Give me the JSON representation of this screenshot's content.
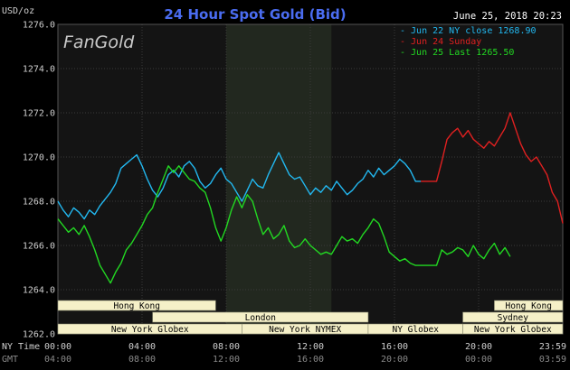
{
  "header": {
    "title": "24 Hour Spot Gold (Bid)",
    "unit_label": "USD/oz",
    "timestamp": "June 25, 2018 20:23",
    "brand": "FanGold"
  },
  "axis_labels": {
    "ny_time": "NY Time",
    "gmt": "GMT"
  },
  "legend": [
    {
      "text": "- Jun 22 NY close 1268.90",
      "color": "#22b8f0"
    },
    {
      "text": "- Jun 24 Sunday",
      "color": "#e02020"
    },
    {
      "text": "- Jun 25 Last 1265.50",
      "color": "#22d822"
    }
  ],
  "colors": {
    "background": "#000000",
    "plot_bg": "#141414",
    "grid": "#3a3a3a",
    "shade": "#22281f",
    "title": "#4a6cf0",
    "axis_text": "#cfcfcf",
    "gmt_text": "#8a8a8a",
    "session_fill": "#f5f0c8",
    "session_text": "#000000"
  },
  "sessions": [
    {
      "label": "Hong Kong",
      "row": 1,
      "start_h": 0,
      "end_h": 7.5
    },
    {
      "label": "London",
      "row": 2,
      "start_h": 4.5,
      "end_h": 14.75
    },
    {
      "label": "New York Globex",
      "row": 3,
      "start_h": 0,
      "end_h": 8.75
    },
    {
      "label": "New York NYMEX",
      "row": 3,
      "start_h": 8.75,
      "end_h": 14.75
    },
    {
      "label": "NY Globex",
      "row": 3,
      "start_h": 14.75,
      "end_h": 19.25
    },
    {
      "label": "Hong Kong",
      "row": 1,
      "start_h": 20.75,
      "end_h": 24
    },
    {
      "label": "Sydney",
      "row": 2,
      "start_h": 19.25,
      "end_h": 24
    },
    {
      "label": "New York Globex",
      "row": 3,
      "start_h": 19.25,
      "end_h": 24
    }
  ],
  "chart_data": {
    "type": "line",
    "title": "24 Hour Spot Gold (Bid)",
    "ylabel": "USD/oz",
    "ylim": [
      1262.0,
      1276.0
    ],
    "yticks": [
      "1276.0",
      "1274.0",
      "1272.0",
      "1270.0",
      "1268.0",
      "1266.0",
      "1264.0",
      "1262.0"
    ],
    "xlim_hours": [
      0,
      24
    ],
    "xticks": [
      {
        "h": 0,
        "ny": "00:00",
        "gmt": "04:00"
      },
      {
        "h": 4,
        "ny": "04:00",
        "gmt": "08:00"
      },
      {
        "h": 8,
        "ny": "08:00",
        "gmt": "12:00"
      },
      {
        "h": 12,
        "ny": "12:00",
        "gmt": "16:00"
      },
      {
        "h": 16,
        "ny": "16:00",
        "gmt": "20:00"
      },
      {
        "h": 20,
        "ny": "20:00",
        "gmt": "00:00"
      },
      {
        "h": 24,
        "ny": "23:59",
        "gmt": "03:59"
      }
    ],
    "shaded_period_hours": [
      8.0,
      13.0
    ],
    "grid": true,
    "series": [
      {
        "name": "Jun 22 NY close 1268.90",
        "color": "#22b8f0",
        "points": [
          [
            0.0,
            1268.0
          ],
          [
            0.25,
            1267.6
          ],
          [
            0.5,
            1267.3
          ],
          [
            0.75,
            1267.7
          ],
          [
            1.0,
            1267.5
          ],
          [
            1.25,
            1267.2
          ],
          [
            1.5,
            1267.6
          ],
          [
            1.75,
            1267.4
          ],
          [
            2.0,
            1267.8
          ],
          [
            2.25,
            1268.1
          ],
          [
            2.5,
            1268.4
          ],
          [
            2.75,
            1268.8
          ],
          [
            3.0,
            1269.5
          ],
          [
            3.25,
            1269.7
          ],
          [
            3.5,
            1269.9
          ],
          [
            3.75,
            1270.1
          ],
          [
            4.0,
            1269.6
          ],
          [
            4.25,
            1269.0
          ],
          [
            4.5,
            1268.5
          ],
          [
            4.75,
            1268.2
          ],
          [
            5.0,
            1268.6
          ],
          [
            5.25,
            1269.2
          ],
          [
            5.5,
            1269.4
          ],
          [
            5.75,
            1269.1
          ],
          [
            6.0,
            1269.6
          ],
          [
            6.25,
            1269.8
          ],
          [
            6.5,
            1269.5
          ],
          [
            6.75,
            1268.9
          ],
          [
            7.0,
            1268.6
          ],
          [
            7.25,
            1268.8
          ],
          [
            7.5,
            1269.2
          ],
          [
            7.75,
            1269.5
          ],
          [
            8.0,
            1269.0
          ],
          [
            8.25,
            1268.8
          ],
          [
            8.5,
            1268.4
          ],
          [
            8.75,
            1268.0
          ],
          [
            9.0,
            1268.5
          ],
          [
            9.25,
            1269.0
          ],
          [
            9.5,
            1268.7
          ],
          [
            9.75,
            1268.6
          ],
          [
            10.0,
            1269.2
          ],
          [
            10.25,
            1269.7
          ],
          [
            10.5,
            1270.2
          ],
          [
            10.75,
            1269.7
          ],
          [
            11.0,
            1269.2
          ],
          [
            11.25,
            1269.0
          ],
          [
            11.5,
            1269.1
          ],
          [
            11.75,
            1268.7
          ],
          [
            12.0,
            1268.3
          ],
          [
            12.25,
            1268.6
          ],
          [
            12.5,
            1268.4
          ],
          [
            12.75,
            1268.7
          ],
          [
            13.0,
            1268.5
          ],
          [
            13.25,
            1268.9
          ],
          [
            13.5,
            1268.6
          ],
          [
            13.75,
            1268.3
          ],
          [
            14.0,
            1268.5
          ],
          [
            14.25,
            1268.8
          ],
          [
            14.5,
            1269.0
          ],
          [
            14.75,
            1269.4
          ],
          [
            15.0,
            1269.1
          ],
          [
            15.25,
            1269.5
          ],
          [
            15.5,
            1269.2
          ],
          [
            15.75,
            1269.4
          ],
          [
            16.0,
            1269.6
          ],
          [
            16.25,
            1269.9
          ],
          [
            16.5,
            1269.7
          ],
          [
            16.75,
            1269.4
          ],
          [
            17.0,
            1268.9
          ],
          [
            17.25,
            1268.9
          ]
        ]
      },
      {
        "name": "Jun 24 Sunday",
        "color": "#e02020",
        "points": [
          [
            17.25,
            1268.9
          ],
          [
            18.0,
            1268.9
          ],
          [
            18.25,
            1269.8
          ],
          [
            18.5,
            1270.8
          ],
          [
            18.75,
            1271.1
          ],
          [
            19.0,
            1271.3
          ],
          [
            19.25,
            1270.9
          ],
          [
            19.5,
            1271.2
          ],
          [
            19.75,
            1270.8
          ],
          [
            20.0,
            1270.6
          ],
          [
            20.25,
            1270.4
          ],
          [
            20.5,
            1270.7
          ],
          [
            20.75,
            1270.5
          ],
          [
            21.0,
            1270.9
          ],
          [
            21.25,
            1271.3
          ],
          [
            21.5,
            1272.0
          ],
          [
            21.75,
            1271.3
          ],
          [
            22.0,
            1270.6
          ],
          [
            22.25,
            1270.1
          ],
          [
            22.5,
            1269.8
          ],
          [
            22.75,
            1270.0
          ],
          [
            23.0,
            1269.6
          ],
          [
            23.25,
            1269.2
          ],
          [
            23.5,
            1268.4
          ],
          [
            23.75,
            1268.0
          ],
          [
            24.0,
            1267.0
          ]
        ]
      },
      {
        "name": "Jun 25 Last 1265.50",
        "color": "#22d822",
        "points": [
          [
            0.0,
            1267.2
          ],
          [
            0.25,
            1266.9
          ],
          [
            0.5,
            1266.6
          ],
          [
            0.75,
            1266.8
          ],
          [
            1.0,
            1266.5
          ],
          [
            1.25,
            1266.9
          ],
          [
            1.5,
            1266.4
          ],
          [
            1.75,
            1265.8
          ],
          [
            2.0,
            1265.1
          ],
          [
            2.25,
            1264.7
          ],
          [
            2.5,
            1264.3
          ],
          [
            2.75,
            1264.8
          ],
          [
            3.0,
            1265.2
          ],
          [
            3.25,
            1265.8
          ],
          [
            3.5,
            1266.1
          ],
          [
            3.75,
            1266.5
          ],
          [
            4.0,
            1266.9
          ],
          [
            4.25,
            1267.4
          ],
          [
            4.5,
            1267.7
          ],
          [
            4.75,
            1268.4
          ],
          [
            5.0,
            1269.0
          ],
          [
            5.25,
            1269.6
          ],
          [
            5.5,
            1269.3
          ],
          [
            5.75,
            1269.6
          ],
          [
            6.0,
            1269.3
          ],
          [
            6.25,
            1269.0
          ],
          [
            6.5,
            1268.9
          ],
          [
            6.75,
            1268.6
          ],
          [
            7.0,
            1268.4
          ],
          [
            7.25,
            1267.7
          ],
          [
            7.5,
            1266.8
          ],
          [
            7.75,
            1266.2
          ],
          [
            8.0,
            1266.8
          ],
          [
            8.25,
            1267.6
          ],
          [
            8.5,
            1268.2
          ],
          [
            8.75,
            1267.7
          ],
          [
            9.0,
            1268.3
          ],
          [
            9.25,
            1268.0
          ],
          [
            9.5,
            1267.2
          ],
          [
            9.75,
            1266.5
          ],
          [
            10.0,
            1266.8
          ],
          [
            10.25,
            1266.3
          ],
          [
            10.5,
            1266.5
          ],
          [
            10.75,
            1266.9
          ],
          [
            11.0,
            1266.2
          ],
          [
            11.25,
            1265.9
          ],
          [
            11.5,
            1266.0
          ],
          [
            11.75,
            1266.3
          ],
          [
            12.0,
            1266.0
          ],
          [
            12.25,
            1265.8
          ],
          [
            12.5,
            1265.6
          ],
          [
            12.75,
            1265.7
          ],
          [
            13.0,
            1265.6
          ],
          [
            13.25,
            1266.0
          ],
          [
            13.5,
            1266.4
          ],
          [
            13.75,
            1266.2
          ],
          [
            14.0,
            1266.3
          ],
          [
            14.25,
            1266.1
          ],
          [
            14.5,
            1266.5
          ],
          [
            14.75,
            1266.8
          ],
          [
            15.0,
            1267.2
          ],
          [
            15.25,
            1267.0
          ],
          [
            15.5,
            1266.4
          ],
          [
            15.75,
            1265.7
          ],
          [
            16.0,
            1265.5
          ],
          [
            16.25,
            1265.3
          ],
          [
            16.5,
            1265.4
          ],
          [
            16.75,
            1265.2
          ],
          [
            17.0,
            1265.1
          ],
          [
            17.5,
            1265.1
          ],
          [
            18.0,
            1265.1
          ],
          [
            18.25,
            1265.8
          ],
          [
            18.5,
            1265.6
          ],
          [
            18.75,
            1265.7
          ],
          [
            19.0,
            1265.9
          ],
          [
            19.25,
            1265.8
          ],
          [
            19.5,
            1265.5
          ],
          [
            19.75,
            1266.0
          ],
          [
            20.0,
            1265.6
          ],
          [
            20.25,
            1265.4
          ],
          [
            20.5,
            1265.8
          ],
          [
            20.75,
            1266.1
          ],
          [
            21.0,
            1265.6
          ],
          [
            21.25,
            1265.9
          ],
          [
            21.5,
            1265.5
          ]
        ]
      }
    ]
  }
}
